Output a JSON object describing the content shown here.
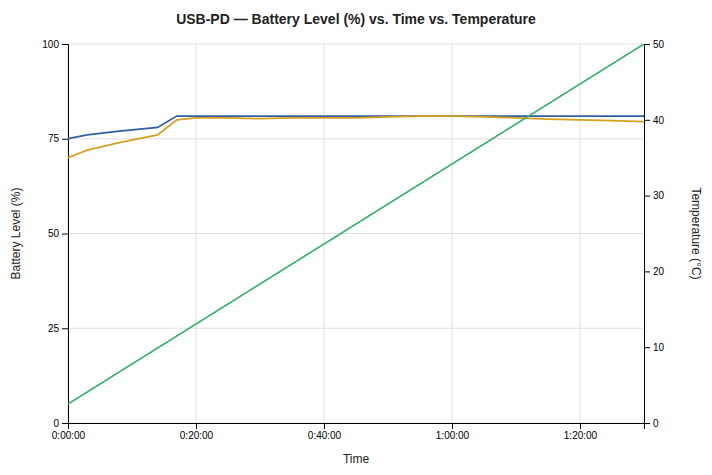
{
  "chart_data": {
    "type": "line",
    "title": "USB-PD — Battery Level (%) vs. Time vs. Temperature",
    "xlabel": "Time",
    "ylabel": "Battery Level (%)",
    "y2label": "Temperature (°C)",
    "xlim": [
      0,
      90
    ],
    "xticks": [
      {
        "value": 0,
        "label": "0:00:00"
      },
      {
        "value": 20,
        "label": "0:20:00"
      },
      {
        "value": 40,
        "label": "0:40:00"
      },
      {
        "value": 60,
        "label": "1:00:00"
      },
      {
        "value": 80,
        "label": "1:20:00"
      }
    ],
    "ylim": [
      0,
      100
    ],
    "yticks": [
      0,
      25,
      50,
      75,
      100
    ],
    "y2lim": [
      0,
      50
    ],
    "y2ticks": [
      0,
      10,
      20,
      30,
      40,
      50
    ],
    "grid": true,
    "series": [
      {
        "color": "#3060a0",
        "x": [
          0,
          3,
          8,
          14,
          17,
          20,
          25,
          30,
          35,
          40,
          45,
          50,
          55,
          60,
          65,
          70,
          75,
          80,
          85,
          90
        ],
        "values": [
          75,
          76,
          77,
          78,
          81,
          81,
          81,
          81,
          81,
          81,
          81,
          81,
          81,
          81,
          81,
          81,
          81,
          81,
          81,
          81
        ]
      },
      {
        "color": "#d4a020",
        "x": [
          0,
          3,
          8,
          14,
          17,
          20,
          25,
          30,
          35,
          40,
          45,
          50,
          55,
          60,
          65,
          70,
          75,
          80,
          85,
          90
        ],
        "values": [
          70,
          72,
          74,
          76,
          80,
          80.5,
          80.5,
          80.3,
          80.5,
          80.5,
          80.5,
          80.8,
          81,
          81,
          80.8,
          80.5,
          80.2,
          80,
          79.8,
          79.5
        ]
      },
      {
        "color": "#40b070",
        "axis": "y2",
        "x": [
          0,
          90
        ],
        "values": [
          2.5,
          50
        ]
      }
    ]
  }
}
